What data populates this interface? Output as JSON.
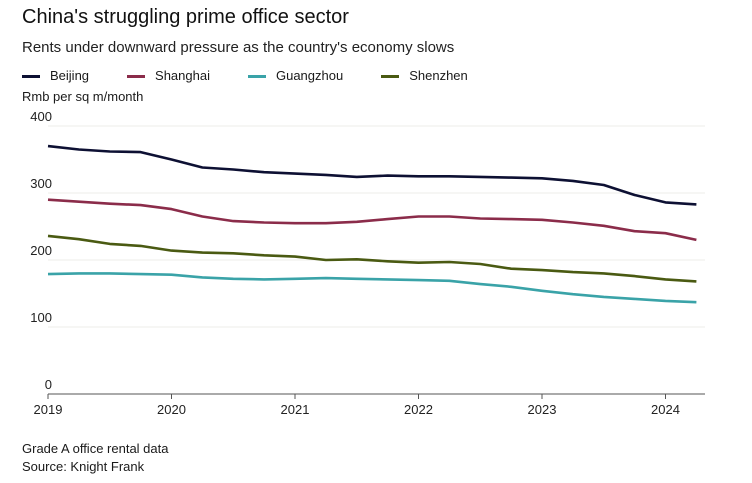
{
  "title": "China's struggling prime office sector",
  "subtitle": "Rents under downward pressure as the country's economy slows",
  "notes": [
    "Grade A office rental data",
    "Source: Knight Frank"
  ],
  "chart_data": {
    "type": "line",
    "ylabel": "Rmb per sq m/month",
    "ylim": [
      0,
      400
    ],
    "yticks": [
      0,
      100,
      200,
      300,
      400
    ],
    "xlim": [
      2019,
      2024.3
    ],
    "xticks": [
      "2019",
      "2020",
      "2021",
      "2022",
      "2023",
      "2024"
    ],
    "grid": true,
    "legend_position": "top",
    "x": [
      2019.0,
      2019.25,
      2019.5,
      2019.75,
      2020.0,
      2020.25,
      2020.5,
      2020.75,
      2021.0,
      2021.25,
      2021.5,
      2021.75,
      2022.0,
      2022.25,
      2022.5,
      2022.75,
      2023.0,
      2023.25,
      2023.5,
      2023.75,
      2024.0,
      2024.25
    ],
    "series": [
      {
        "name": "Beijing",
        "color": "#0d1033",
        "values": [
          370,
          365,
          362,
          361,
          350,
          338,
          335,
          331,
          329,
          327,
          324,
          326,
          325,
          325,
          324,
          323,
          322,
          318,
          312,
          297,
          286,
          283
        ]
      },
      {
        "name": "Shanghai",
        "color": "#8b2c4a",
        "values": [
          290,
          287,
          284,
          282,
          276,
          265,
          258,
          256,
          255,
          255,
          257,
          261,
          265,
          265,
          262,
          261,
          260,
          256,
          251,
          243,
          240,
          230
        ]
      },
      {
        "name": "Guangzhou",
        "color": "#3aa3a8",
        "values": [
          179,
          180,
          180,
          179,
          178,
          174,
          172,
          171,
          172,
          173,
          172,
          171,
          170,
          169,
          164,
          160,
          154,
          149,
          145,
          142,
          139,
          137
        ]
      },
      {
        "name": "Shenzhen",
        "color": "#4a5a12",
        "values": [
          236,
          231,
          224,
          221,
          214,
          211,
          210,
          207,
          205,
          200,
          201,
          198,
          196,
          197,
          194,
          187,
          185,
          182,
          180,
          176,
          171,
          168
        ]
      }
    ]
  }
}
